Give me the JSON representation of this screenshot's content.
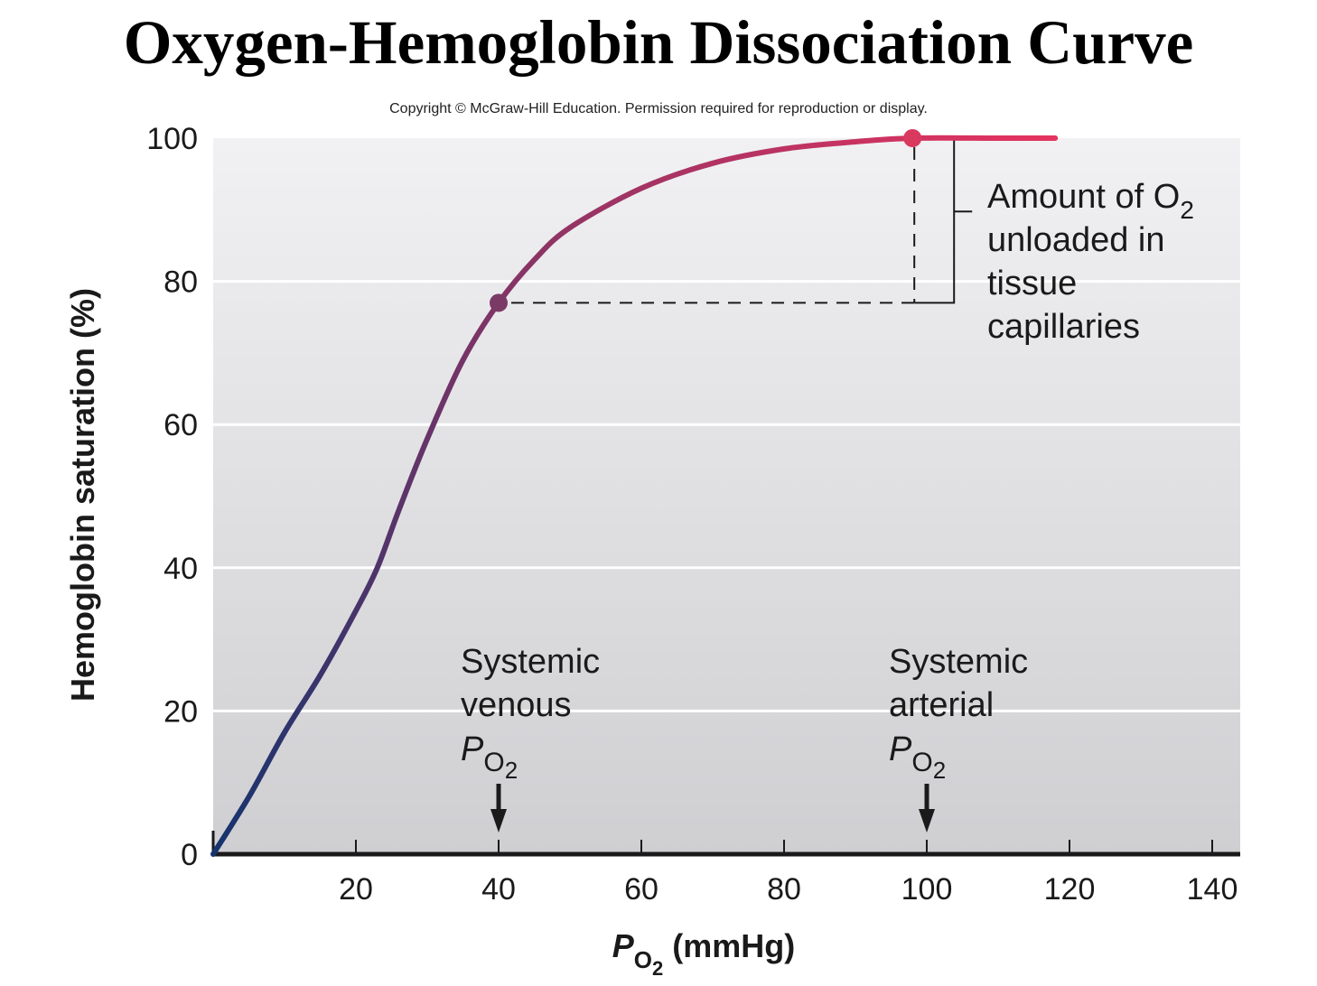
{
  "title": "Oxygen-Hemoglobin Dissociation Curve",
  "copyright": "Copyright © McGraw-Hill Education. Permission required for reproduction or display.",
  "chart_data": {
    "type": "line",
    "ylabel": "Hemoglobin saturation (%)",
    "xlabel": {
      "main": "P",
      "sub": "O",
      "subsub": "2",
      "unit": "(mmHg)"
    },
    "xlim": [
      0,
      142
    ],
    "ylim": [
      0,
      100
    ],
    "x_ticks": [
      20,
      40,
      60,
      80,
      100,
      120,
      140
    ],
    "y_ticks": [
      0,
      20,
      40,
      60,
      80,
      100
    ],
    "grid": true,
    "series": [
      {
        "x": [
          0,
          5,
          10,
          15,
          20,
          23,
          26,
          30,
          35,
          40,
          45,
          50,
          60,
          70,
          80,
          90,
          98,
          110,
          118
        ],
        "values": [
          0,
          8,
          17,
          25,
          34,
          40,
          48,
          58,
          69,
          77,
          83,
          87.5,
          93,
          96.5,
          98.5,
          99.5,
          100,
          100,
          100
        ],
        "colors": [
          "#15346e",
          "#e5335f"
        ]
      }
    ],
    "points": [
      {
        "x": 40,
        "y": 77,
        "color": "#7b3a66"
      },
      {
        "x": 98,
        "y": 100,
        "color": "#d9385f"
      }
    ],
    "annotations": {
      "unloaded": [
        "Amount of O",
        "2",
        "unloaded in",
        "tissue",
        "capillaries"
      ],
      "venous": {
        "lines": [
          "Systemic",
          "venous"
        ],
        "p": "P",
        "sub": "O",
        "subsub": "2",
        "x": 40
      },
      "arterial": {
        "lines": [
          "Systemic",
          "arterial"
        ],
        "p": "P",
        "sub": "O",
        "subsub": "2",
        "x": 100
      }
    }
  }
}
